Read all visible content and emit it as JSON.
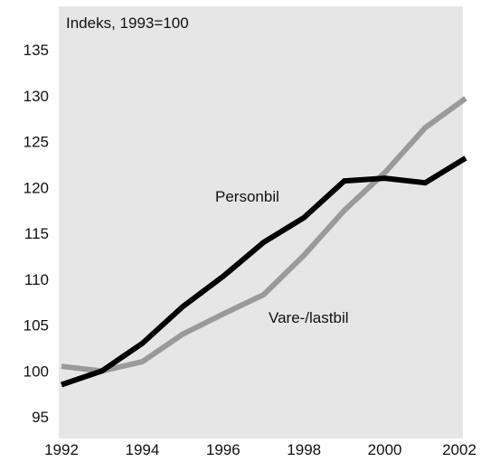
{
  "chart_data": {
    "type": "line",
    "title": "",
    "ylabel": "Indeks, 1993=100",
    "xlabel": "",
    "xlim": [
      1992,
      2002
    ],
    "ylim": [
      95,
      135
    ],
    "x_ticks": [
      "1992",
      "1994",
      "1996",
      "1998",
      "2000",
      "2002"
    ],
    "y_ticks": [
      "95",
      "100",
      "105",
      "110",
      "115",
      "120",
      "125",
      "130",
      "135"
    ],
    "grid": false,
    "background": "#e6e6e6",
    "x": [
      1992,
      1993,
      1994,
      1995,
      1996,
      1997,
      1998,
      1999,
      2000,
      2001,
      2002
    ],
    "series": [
      {
        "name": "Personbil",
        "color": "#000000",
        "values": [
          98.5,
          100,
          103,
          107,
          110.3,
          114,
          116.7,
          120.7,
          121,
          120.5,
          123.2
        ]
      },
      {
        "name": "Vare-/lastbil",
        "color": "#9a9a9a",
        "values": [
          100.5,
          100,
          101,
          104,
          106.2,
          108.3,
          112.6,
          117.5,
          121.6,
          126.5,
          129.7
        ]
      }
    ]
  }
}
